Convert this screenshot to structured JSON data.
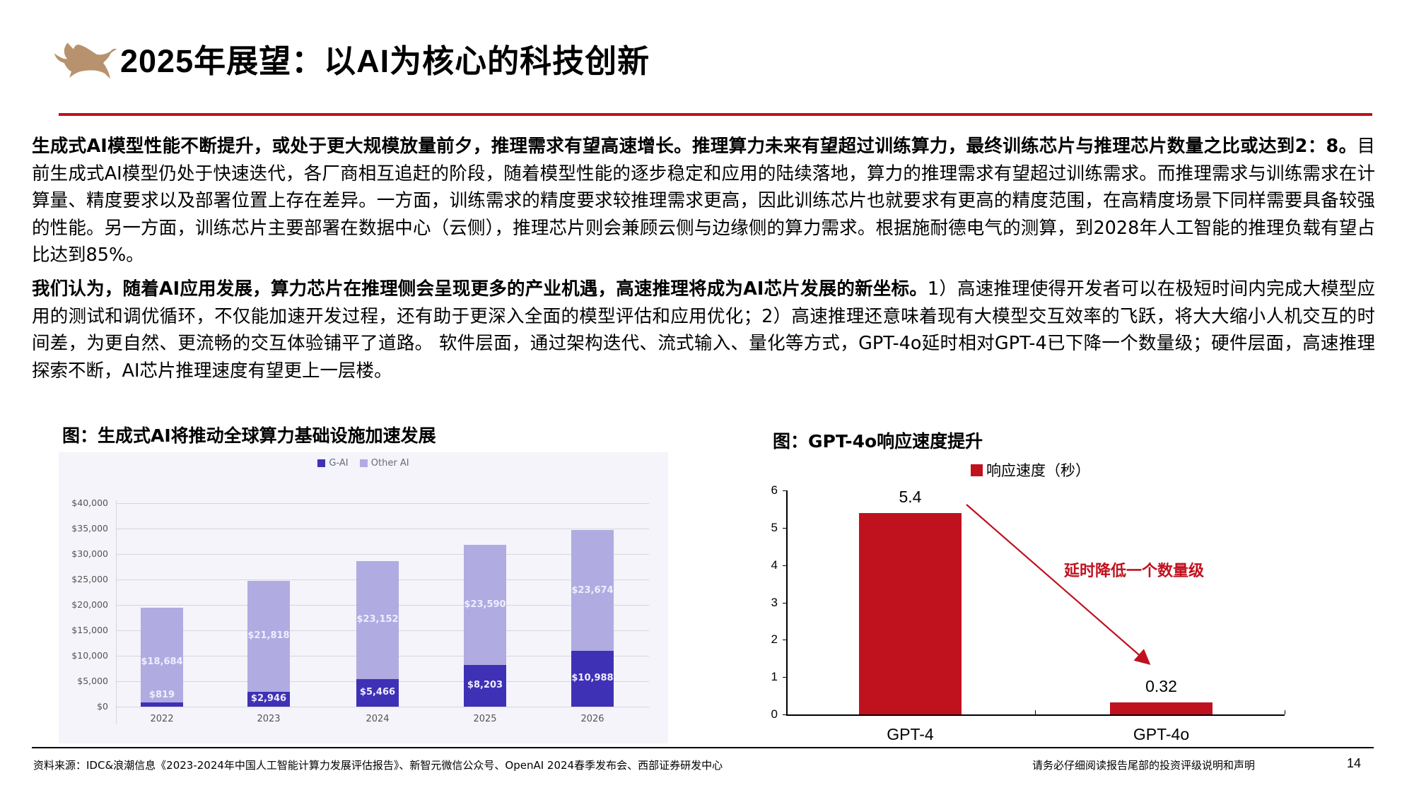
{
  "header": {
    "logo": "bull-logo",
    "title": "2025年展望：以AI为核心的科技创新",
    "accent_color": "#c0111f",
    "logo_color": "#b8926e"
  },
  "paragraphs": [
    {
      "bold": "生成式AI模型性能不断提升，或处于更大规模放量前夕，推理需求有望高速增长。推理算力未来有望超过训练算力，最终训练芯片与推理芯片数量之比或达到2：8。",
      "normal": "目前生成式AI模型仍处于快速迭代，各厂商相互追赶的阶段，随着模型性能的逐步稳定和应用的陆续落地，算力的推理需求有望超过训练需求。而推理需求与训练需求在计算量、精度要求以及部署位置上存在差异。一方面，训练需求的精度要求较推理需求更高，因此训练芯片也就要求有更高的精度范围，在高精度场景下同样需要具备较强的性能。另一方面，训练芯片主要部署在数据中心（云侧），推理芯片则会兼顾云侧与边缘侧的算力需求。根据施耐德电气的测算，到2028年人工智能的推理负载有望占比达到85%。"
    },
    {
      "bold": "我们认为，随着AI应用发展，算力芯片在推理侧会呈现更多的产业机遇，高速推理将成为AI芯片发展的新坐标。",
      "normal": "1）高速推理使得开发者可以在极短时间内完成大模型应用的测试和调优循环，不仅能加速开发过程，还有助于更深入全面的模型评估和应用优化；2）高速推理还意味着现有大模型交互效率的飞跃，将大大缩小人机交互的时间差，为更自然、更流畅的交互体验铺平了道路。 软件层面，通过架构迭代、流式输入、量化等方式，GPT-4o延时相对GPT-4已下降一个数量级；硬件层面，高速推理探索不断，AI芯片推理速度有望更上一层楼。"
    }
  ],
  "left_chart": {
    "caption": "图：生成式AI将推动全球算力基础设施加速发展"
  },
  "right_chart": {
    "caption": "图：GPT-4o响应速度提升",
    "annotation": "延时降低一个数量级"
  },
  "chart_data": [
    {
      "type": "bar",
      "stacked": true,
      "title": "图：生成式AI将推动全球算力基础设施加速发展",
      "categories": [
        "2022",
        "2023",
        "2024",
        "2025",
        "2026"
      ],
      "series": [
        {
          "name": "G-AI",
          "color": "#3f31b5",
          "values": [
            819,
            2946,
            5466,
            8203,
            10988
          ],
          "labels": [
            "$819",
            "$2,946",
            "$5,466",
            "$8,203",
            "$10,988"
          ]
        },
        {
          "name": "Other AI",
          "color": "#b0abe1",
          "values": [
            18684,
            21818,
            23152,
            23590,
            23674
          ],
          "labels": [
            "$18,684",
            "$21,818",
            "$23,152",
            "$23,590",
            "$23,674"
          ]
        }
      ],
      "yticks": [
        "$0",
        "$5,000",
        "$10,000",
        "$15,000",
        "$20,000",
        "$25,000",
        "$30,000",
        "$35,000",
        "$40,000"
      ],
      "ylim": [
        0,
        40000
      ],
      "xlabel": "",
      "ylabel": "",
      "grid": true,
      "legend_position": "top"
    },
    {
      "type": "bar",
      "title": "图：GPT-4o响应速度提升",
      "categories": [
        "GPT-4",
        "GPT-4o"
      ],
      "series": [
        {
          "name": "响应速度（秒）",
          "color": "#c0111f",
          "values": [
            5.4,
            0.32
          ],
          "labels": [
            "5.4",
            "0.32"
          ]
        }
      ],
      "yticks": [
        "0",
        "1",
        "2",
        "3",
        "4",
        "5",
        "6"
      ],
      "ylim": [
        0,
        6
      ],
      "xlabel": "",
      "ylabel": "",
      "grid": false,
      "legend_position": "top-right",
      "annotations": [
        {
          "text": "延时降低一个数量级",
          "type": "arrow",
          "from": "GPT-4",
          "to": "GPT-4o"
        }
      ]
    }
  ],
  "footer": {
    "source": "资料来源：IDC&浪潮信息《2023-2024年中国人工智能计算力发展评估报告》、新智元微信公众号、OpenAI 2024春季发布会、西部证券研发中心",
    "disclaimer": "请务必仔细阅读报告尾部的投资评级说明和声明",
    "page_number": "14"
  }
}
